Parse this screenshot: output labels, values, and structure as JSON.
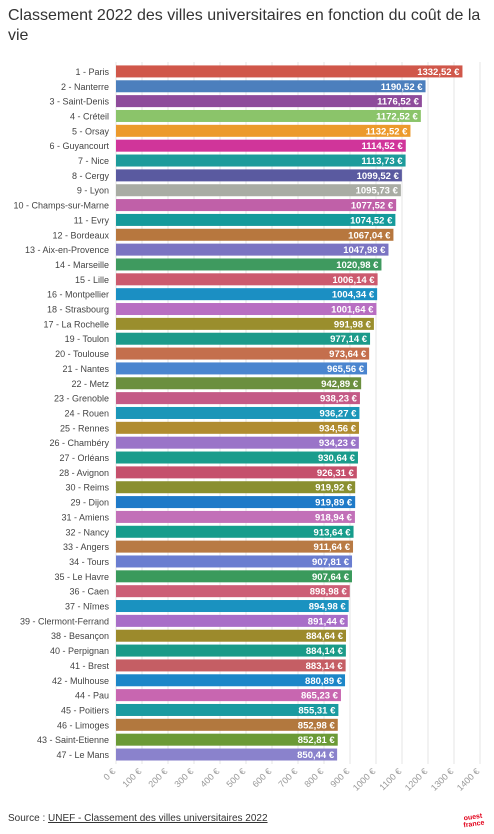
{
  "chart_data": {
    "type": "bar",
    "orientation": "horizontal",
    "title": "Classement 2022 des villes universitaires en fonction du coût de la vie",
    "categories": [
      "1 - Paris",
      "2 - Nanterre",
      "3 - Saint-Denis",
      "4 - Créteil",
      "5 - Orsay",
      "6 - Guyancourt",
      "7 - Nice",
      "8 - Cergy",
      "9 - Lyon",
      "10 - Champs-sur-Marne",
      "11 - Evry",
      "12 - Bordeaux",
      "13 - Aix-en-Provence",
      "14 - Marseille",
      "15 - Lille",
      "16 - Montpellier",
      "18 - Strasbourg",
      "17 - La Rochelle",
      "19 - Toulon",
      "20 - Toulouse",
      "21 - Nantes",
      "22 - Metz",
      "23 - Grenoble",
      "24 - Rouen",
      "25 - Rennes",
      "26 - Chambéry",
      "27 - Orléans",
      "28 - Avignon",
      "30 - Reims",
      "29 - Dijon",
      "31 - Amiens",
      "32 - Nancy",
      "33 - Angers",
      "34 - Tours",
      "35 - Le Havre",
      "36 - Caen",
      "37 - Nîmes",
      "39 - Clermont-Ferrand",
      "38 - Besançon",
      "40 - Perpignan",
      "41 - Brest",
      "42 - Mulhouse",
      "44 - Pau",
      "45 - Poitiers",
      "46 - Limoges",
      "43 - Saint-Etienne",
      "47 - Le Mans"
    ],
    "values": [
      1332.52,
      1190.52,
      1176.52,
      1172.52,
      1132.52,
      1114.52,
      1113.73,
      1099.52,
      1095.73,
      1077.52,
      1074.52,
      1067.04,
      1047.98,
      1020.98,
      1006.14,
      1004.34,
      1001.64,
      991.98,
      977.14,
      973.64,
      965.56,
      942.89,
      938.23,
      936.27,
      934.56,
      934.23,
      930.64,
      926.31,
      919.92,
      919.89,
      918.94,
      913.64,
      911.64,
      907.81,
      907.64,
      898.98,
      894.98,
      891.44,
      884.64,
      884.14,
      883.14,
      880.89,
      865.23,
      855.31,
      852.98,
      852.81,
      850.44
    ],
    "value_labels": [
      "1332,52 €",
      "1190,52 €",
      "1176,52 €",
      "1172,52 €",
      "1132,52 €",
      "1114,52 €",
      "1113,73 €",
      "1099,52 €",
      "1095,73 €",
      "1077,52 €",
      "1074,52 €",
      "1067,04 €",
      "1047,98 €",
      "1020,98 €",
      "1006,14 €",
      "1004,34 €",
      "1001,64 €",
      "991,98 €",
      "977,14 €",
      "973,64 €",
      "965,56 €",
      "942,89 €",
      "938,23 €",
      "936,27 €",
      "934,56 €",
      "934,23 €",
      "930,64 €",
      "926,31 €",
      "919,92 €",
      "919,89 €",
      "918,94 €",
      "913,64 €",
      "911,64 €",
      "907,81 €",
      "907,64 €",
      "898,98 €",
      "894,98 €",
      "891,44 €",
      "884,64 €",
      "884,14 €",
      "883,14 €",
      "880,89 €",
      "865,23 €",
      "855,31 €",
      "852,98 €",
      "852,81 €",
      "850,44 €"
    ],
    "colors": [
      "#d0574a",
      "#4c7fbd",
      "#8e4b9b",
      "#8bc46a",
      "#ec9a2c",
      "#d0359a",
      "#1d9b9b",
      "#5a5aa0",
      "#a9aca4",
      "#c060a8",
      "#159a9b",
      "#b7773e",
      "#7b74c2",
      "#3f9a5f",
      "#cc5a6e",
      "#1b8fc3",
      "#b86ec2",
      "#9a8e2d",
      "#1c9a8a",
      "#c46f4d",
      "#4a85cf",
      "#6b8f3e",
      "#c45a86",
      "#1b96b8",
      "#b08c30",
      "#9a74c8",
      "#1a9c8c",
      "#c5506c",
      "#8a8f30",
      "#1f7ac8",
      "#c270b8",
      "#169c8c",
      "#b87a44",
      "#6a7dd0",
      "#3a9a5c",
      "#cc5e76",
      "#1a92c0",
      "#a86ec8",
      "#9c8a2c",
      "#1a9a88",
      "#c55e64",
      "#1c86c8",
      "#c866b0",
      "#1a9aa0",
      "#b2783e",
      "#6b9a36",
      "#8a82cc"
    ],
    "xticks": [
      0,
      100,
      200,
      300,
      400,
      500,
      600,
      700,
      800,
      900,
      1000,
      1100,
      1200,
      1300,
      1400
    ],
    "xtick_labels": [
      "0 €",
      "100 €",
      "200 €",
      "300 €",
      "400 €",
      "500 €",
      "600 €",
      "700 €",
      "800 €",
      "900 €",
      "1000 €",
      "1100 €",
      "1200 €",
      "1300 €",
      "1400 €"
    ],
    "xlim": [
      0,
      1400
    ],
    "xlabel": "",
    "ylabel": "",
    "grid": true
  },
  "footer": {
    "prefix": "Source : ",
    "link": "UNEF - Classement des villes universitaires 2022"
  },
  "logo": {
    "line1": "ouest",
    "line2": "france"
  }
}
